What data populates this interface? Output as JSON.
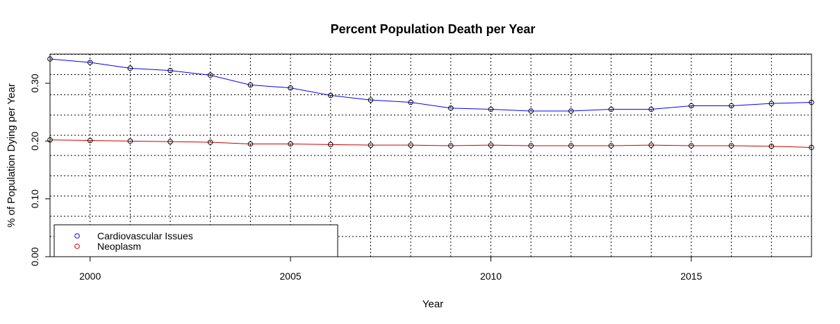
{
  "chart_data": {
    "type": "line",
    "title": "Percent Population Death per Year",
    "xlabel": "Year",
    "ylabel": "% of Population Dying per Year",
    "x": [
      1999,
      2000,
      2001,
      2002,
      2003,
      2004,
      2005,
      2006,
      2007,
      2008,
      2009,
      2010,
      2011,
      2012,
      2013,
      2014,
      2015,
      2016,
      2017,
      2018
    ],
    "series": [
      {
        "name": "Cardiovascular Issues",
        "color": "#0000ff",
        "values": [
          0.342,
          0.336,
          0.326,
          0.322,
          0.314,
          0.297,
          0.292,
          0.279,
          0.271,
          0.267,
          0.257,
          0.255,
          0.252,
          0.252,
          0.255,
          0.255,
          0.261,
          0.261,
          0.265,
          0.267
        ]
      },
      {
        "name": "Neoplasm",
        "color": "#cc0000",
        "values": [
          0.202,
          0.201,
          0.2,
          0.199,
          0.198,
          0.195,
          0.195,
          0.194,
          0.193,
          0.193,
          0.192,
          0.193,
          0.192,
          0.192,
          0.192,
          0.193,
          0.192,
          0.192,
          0.191,
          0.189
        ]
      }
    ],
    "xlim": [
      1999,
      2018
    ],
    "ylim": [
      0,
      0.35
    ],
    "xticks": [
      "2000",
      "2005",
      "2010",
      "2015"
    ],
    "yticks": [
      "0.00",
      "0.10",
      "0.20",
      "0.30"
    ],
    "grid": true,
    "grid_style": "dotted",
    "legend_position": "bottom-left",
    "marker": "open-circle"
  }
}
